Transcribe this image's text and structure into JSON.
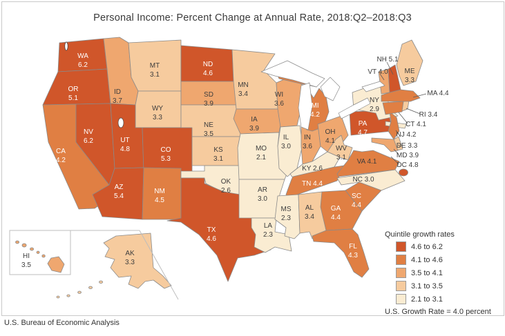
{
  "title": "Personal Income: Percent Change at Annual Rate, 2018:Q2–2018:Q3",
  "source": "U.S. Bureau of Economic Analysis",
  "chart_data": {
    "type": "choropleth",
    "geography": "United States, by state (incl. DC, AK & HI insets)",
    "metric": "Personal income percent change at annual rate, 2018:Q2 to 2018:Q3",
    "legend_title": "Quintile growth rates",
    "note": "U.S. Growth Rate = 4.0 percent",
    "bins": [
      {
        "label": "4.6 to 6.2",
        "color": "#d0562a"
      },
      {
        "label": "4.1 to 4.6",
        "color": "#e07f43"
      },
      {
        "label": "3.5 to 4.1",
        "color": "#efa76f"
      },
      {
        "label": "3.1 to 3.5",
        "color": "#f6cb9e"
      },
      {
        "label": "2.1 to 3.1",
        "color": "#faecd2"
      }
    ],
    "states": [
      {
        "code": "WA",
        "value": 6.2,
        "bin": 0
      },
      {
        "code": "OR",
        "value": 5.1,
        "bin": 0
      },
      {
        "code": "CA",
        "value": 4.2,
        "bin": 1
      },
      {
        "code": "NV",
        "value": 6.2,
        "bin": 0
      },
      {
        "code": "ID",
        "value": 3.7,
        "bin": 2
      },
      {
        "code": "MT",
        "value": 3.1,
        "bin": 3
      },
      {
        "code": "WY",
        "value": 3.3,
        "bin": 3
      },
      {
        "code": "UT",
        "value": 4.8,
        "bin": 0
      },
      {
        "code": "CO",
        "value": 5.3,
        "bin": 0
      },
      {
        "code": "AZ",
        "value": 5.4,
        "bin": 0
      },
      {
        "code": "NM",
        "value": 4.5,
        "bin": 1
      },
      {
        "code": "ND",
        "value": 4.6,
        "bin": 0
      },
      {
        "code": "SD",
        "value": 3.9,
        "bin": 2
      },
      {
        "code": "NE",
        "value": 3.5,
        "bin": 3
      },
      {
        "code": "KS",
        "value": 3.1,
        "bin": 3
      },
      {
        "code": "OK",
        "value": 2.6,
        "bin": 4
      },
      {
        "code": "TX",
        "value": 4.6,
        "bin": 0
      },
      {
        "code": "MN",
        "value": 3.4,
        "bin": 3
      },
      {
        "code": "IA",
        "value": 3.9,
        "bin": 2
      },
      {
        "code": "MO",
        "value": 2.1,
        "bin": 4
      },
      {
        "code": "AR",
        "value": 3.0,
        "bin": 4
      },
      {
        "code": "LA",
        "value": 2.3,
        "bin": 4
      },
      {
        "code": "WI",
        "value": 3.6,
        "bin": 2
      },
      {
        "code": "IL",
        "value": 3.0,
        "bin": 4
      },
      {
        "code": "IN",
        "value": 3.6,
        "bin": 2
      },
      {
        "code": "MI",
        "value": 4.2,
        "bin": 1
      },
      {
        "code": "OH",
        "value": 4.1,
        "bin": 2
      },
      {
        "code": "KY",
        "value": 2.6,
        "bin": 4
      },
      {
        "code": "TN",
        "value": 4.4,
        "bin": 1
      },
      {
        "code": "MS",
        "value": 2.3,
        "bin": 4
      },
      {
        "code": "AL",
        "value": 3.4,
        "bin": 3
      },
      {
        "code": "GA",
        "value": 4.4,
        "bin": 1
      },
      {
        "code": "SC",
        "value": 4.4,
        "bin": 1
      },
      {
        "code": "NC",
        "value": 3.0,
        "bin": 4
      },
      {
        "code": "VA",
        "value": 4.1,
        "bin": 1
      },
      {
        "code": "WV",
        "value": 3.1,
        "bin": 3
      },
      {
        "code": "FL",
        "value": 4.3,
        "bin": 1
      },
      {
        "code": "PA",
        "value": 4.7,
        "bin": 0
      },
      {
        "code": "NY",
        "value": 2.9,
        "bin": 4
      },
      {
        "code": "NJ",
        "value": 4.2,
        "bin": 1
      },
      {
        "code": "CT",
        "value": 4.1,
        "bin": 1
      },
      {
        "code": "RI",
        "value": 3.4,
        "bin": 3
      },
      {
        "code": "MA",
        "value": 4.4,
        "bin": 1
      },
      {
        "code": "VT",
        "value": 4.0,
        "bin": 2
      },
      {
        "code": "NH",
        "value": 5.1,
        "bin": 0
      },
      {
        "code": "ME",
        "value": 3.3,
        "bin": 3
      },
      {
        "code": "DE",
        "value": 3.3,
        "bin": 3
      },
      {
        "code": "MD",
        "value": 3.9,
        "bin": 2
      },
      {
        "code": "DC",
        "value": 4.8,
        "bin": 0
      },
      {
        "code": "AK",
        "value": 3.3,
        "bin": 3
      },
      {
        "code": "HI",
        "value": 3.5,
        "bin": 2
      }
    ]
  }
}
